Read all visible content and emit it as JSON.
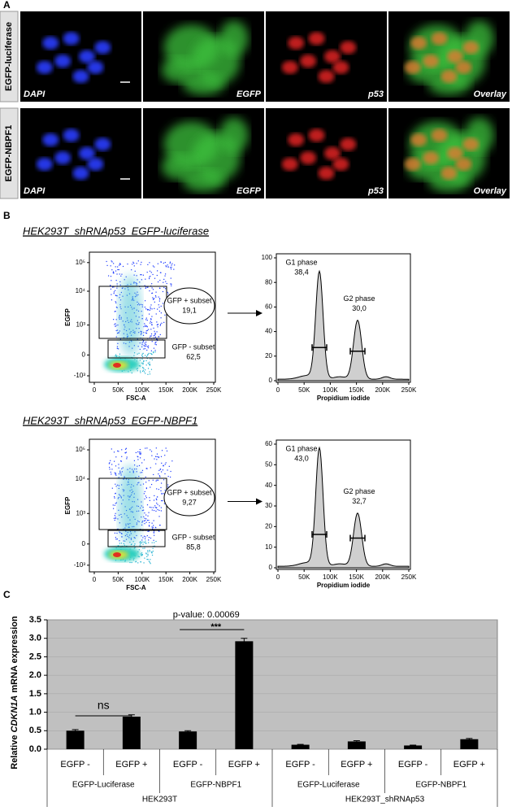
{
  "panel_a": {
    "label": "A",
    "rows": [
      {
        "name": "EGFP-luciferase",
        "channels": [
          "DAPI",
          "EGFP",
          "p53",
          "Overlay"
        ]
      },
      {
        "name": "EGFP-NBPF1",
        "channels": [
          "DAPI",
          "EGFP",
          "p53",
          "Overlay"
        ]
      }
    ]
  },
  "panel_b": {
    "label": "B",
    "experiments": [
      {
        "title": "HEK293T_shRNAp53_EGFP-luciferase",
        "scatter": {
          "ylabel": "EGFP",
          "xlabel": "FSC-A",
          "yticks": [
            "10⁵",
            "10⁴",
            "10³",
            "0",
            "-10³"
          ],
          "xticks": [
            "0",
            "50K",
            "100K",
            "150K",
            "200K",
            "250K"
          ],
          "gfp_pos": {
            "label": "GFP + subset",
            "value": "19,1"
          },
          "gfp_neg": {
            "label": "GFP - subset",
            "value": "62,5"
          }
        },
        "histogram": {
          "xlabel": "Propidium iodide",
          "yticks": [
            0,
            20,
            40,
            60,
            80,
            100
          ],
          "xticks": [
            "0",
            "50K",
            "100K",
            "150K",
            "200K",
            "250K"
          ],
          "g1": {
            "label": "G1 phase",
            "value": "38,4"
          },
          "g2": {
            "label": "G2 phase",
            "value": "30,0"
          }
        }
      },
      {
        "title": "HEK293T_shRNAp53_EGFP-NBPF1",
        "scatter": {
          "ylabel": "EGFP",
          "xlabel": "FSC-A",
          "yticks": [
            "10⁵",
            "10⁴",
            "10³",
            "0",
            "-10³"
          ],
          "xticks": [
            "0",
            "50K",
            "100K",
            "150K",
            "200K",
            "250K"
          ],
          "gfp_pos": {
            "label": "GFP + subset",
            "value": "9,27"
          },
          "gfp_neg": {
            "label": "GFP - subset",
            "value": "85,8"
          }
        },
        "histogram": {
          "xlabel": "Propidium iodide",
          "yticks": [
            0,
            10,
            20,
            30,
            40,
            50,
            60
          ],
          "xticks": [
            "0",
            "50K",
            "100K",
            "150K",
            "200K",
            "250K"
          ],
          "g1": {
            "label": "G1 phase",
            "value": "43,0"
          },
          "g2": {
            "label": "G2 phase",
            "value": "32,7"
          }
        }
      }
    ]
  },
  "chart_data": {
    "type": "bar",
    "label": "C",
    "ylabel_parts": [
      "Relative ",
      "CDKN1A",
      " mRNA expression"
    ],
    "categories": [
      "EGFP -",
      "EGFP +",
      "EGFP -",
      "EGFP +",
      "EGFP -",
      "EGFP +",
      "EGFP -",
      "EGFP +"
    ],
    "groups": [
      "EGFP-Luciferase",
      "EGFP-NBPF1",
      "EGFP-Luciferase",
      "EGFP-NBPF1"
    ],
    "supergroups": [
      "HEK293T",
      "HEK293T_shRNAp53"
    ],
    "values": [
      0.5,
      0.88,
      0.48,
      2.92,
      0.12,
      0.21,
      0.1,
      0.27
    ],
    "errors": [
      0.03,
      0.05,
      0.02,
      0.08,
      0.01,
      0.02,
      0.01,
      0.02
    ],
    "color": "#000000",
    "ylim": [
      0,
      3.5
    ],
    "yticks": [
      {
        "value": 0,
        "label": "0.0"
      },
      0.5,
      {
        "value": 1,
        "label": "1.0"
      },
      1.5,
      {
        "value": 2,
        "label": "2.0"
      },
      2.5,
      {
        "value": 3,
        "label": "3.0"
      },
      3.5
    ],
    "grid": true,
    "annotations": {
      "pvalue": "p-value: 0.00069",
      "stars": "***",
      "ns": "ns"
    }
  }
}
